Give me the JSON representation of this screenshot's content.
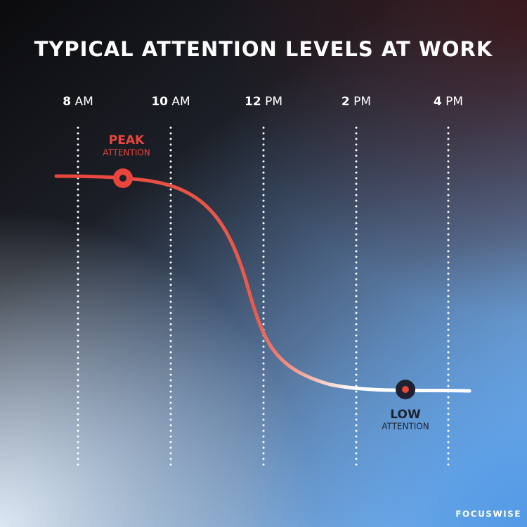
{
  "title": "TYPICAL ATTENTION LEVELS AT WORK",
  "time_labels": [
    {
      "hour": "8",
      "period": "AM"
    },
    {
      "hour": "10",
      "period": "AM"
    },
    {
      "hour": "12",
      "period": "PM"
    },
    {
      "hour": "2",
      "period": "PM"
    },
    {
      "hour": "4",
      "period": "PM"
    }
  ],
  "peak": {
    "label": "PEAK",
    "sublabel": "ATTENTION"
  },
  "low": {
    "label": "LOW",
    "sublabel": "ATTENTION"
  },
  "brand": "FOCUSWISE"
}
